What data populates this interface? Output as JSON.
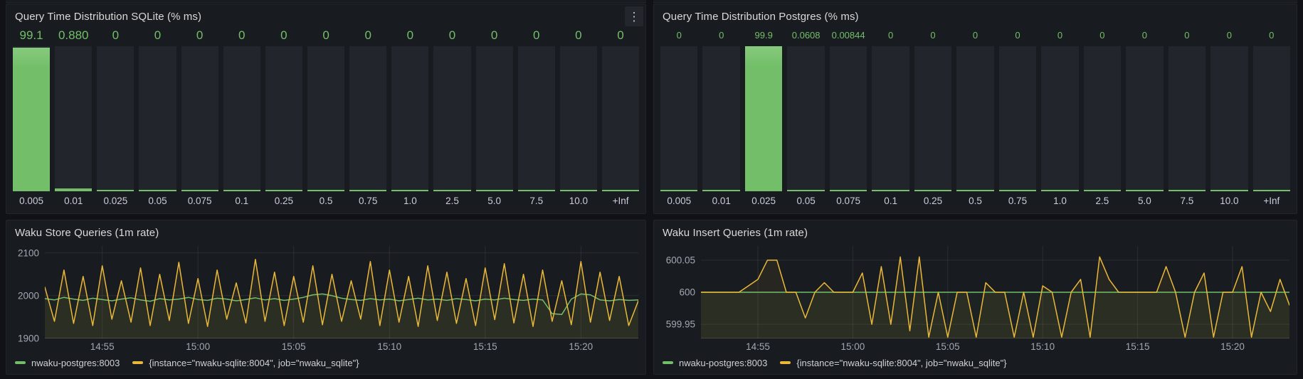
{
  "colors": {
    "page_bg": "#111217",
    "panel_bg": "#181b1f",
    "panel_border": "#22252b",
    "title_text": "#d8d9da",
    "green": "#73bf69",
    "yellow": "#eab839",
    "bar_track": "#22262c",
    "value_text": "#73bf69",
    "bucket_text": "#ccccdc",
    "tick_text": "rgba(204,204,220,0.78)",
    "grid": "rgba(204,204,220,0.10)",
    "axis_line": "rgba(204,204,220,0.16)"
  },
  "icons": {
    "kebab_menu": "⋮"
  },
  "chart_data": [
    {
      "type": "bar",
      "title": "Query Time Distribution SQLite (% ms)",
      "categories": [
        "0.005",
        "0.01",
        "0.025",
        "0.05",
        "0.075",
        "0.1",
        "0.25",
        "0.5",
        "0.75",
        "1.0",
        "2.5",
        "5.0",
        "7.5",
        "10.0",
        "+Inf"
      ],
      "values": [
        99.1,
        0.88,
        0,
        0,
        0,
        0,
        0,
        0,
        0,
        0,
        0,
        0,
        0,
        0,
        0
      ],
      "value_labels": [
        "99.1",
        "0.880",
        "0",
        "0",
        "0",
        "0",
        "0",
        "0",
        "0",
        "0",
        "0",
        "0",
        "0",
        "0",
        "0"
      ],
      "ylim": [
        0,
        100
      ],
      "bar_color": "#73bf69",
      "orientation": "vertical",
      "grid": false
    },
    {
      "type": "bar",
      "title": "Query Time Distribution Postgres (% ms)",
      "categories": [
        "0.005",
        "0.01",
        "0.025",
        "0.05",
        "0.075",
        "0.1",
        "0.25",
        "0.5",
        "0.75",
        "1.0",
        "2.5",
        "5.0",
        "7.5",
        "10.0",
        "+Inf"
      ],
      "values": [
        0,
        0,
        99.9,
        0.0608,
        0.00844,
        0,
        0,
        0,
        0,
        0,
        0,
        0,
        0,
        0,
        0
      ],
      "value_labels": [
        "0",
        "0",
        "99.9",
        "0.0608",
        "0.00844",
        "0",
        "0",
        "0",
        "0",
        "0",
        "0",
        "0",
        "0",
        "0",
        "0"
      ],
      "ylim": [
        0,
        100
      ],
      "bar_color": "#73bf69",
      "orientation": "vertical",
      "grid": false
    },
    {
      "type": "line",
      "title": "Waku Store Queries (1m rate)",
      "x_range": [
        0,
        31
      ],
      "x_start": "14:52",
      "x_end": "15:23",
      "xticks": [
        {
          "pos": 3,
          "label": "14:55"
        },
        {
          "pos": 8,
          "label": "15:00"
        },
        {
          "pos": 13,
          "label": "15:05"
        },
        {
          "pos": 18,
          "label": "15:10"
        },
        {
          "pos": 23,
          "label": "15:15"
        },
        {
          "pos": 28,
          "label": "15:20"
        }
      ],
      "yticks": [
        2100,
        2000,
        1900
      ],
      "ytick_labels": [
        "2100",
        "2000",
        "1900"
      ],
      "ylim": [
        1900,
        2116
      ],
      "grid": true,
      "legend_position": "bottom",
      "series": [
        {
          "name": "nwaku-postgres:8003",
          "color": "#73bf69",
          "fill_opacity": 0.05,
          "values": [
            1993,
            1990,
            1996,
            1992,
            1989,
            1994,
            1991,
            1988,
            1992,
            1995,
            1990,
            1987,
            1993,
            1990,
            1992,
            1996,
            1991,
            1989,
            1994,
            1992,
            1988,
            1991,
            1995,
            1990,
            1993,
            1989,
            1992,
            1996,
            2002,
            2004,
            2000,
            1994,
            1991,
            1989,
            1993,
            1990,
            1992,
            1988,
            1991,
            1994,
            1990,
            1992,
            1989,
            1993,
            1991,
            1988,
            1992,
            1990,
            1994,
            1991,
            1989,
            1992,
            1990,
            1958,
            1956,
            1992,
            2004,
            2002,
            1990,
            1988,
            1991,
            1989,
            1990
          ]
        },
        {
          "name": "{instance=\"nwaku-sqlite:8004\", job=\"nwaku_sqlite\"}",
          "color": "#eab839",
          "fill_opacity": 0.08,
          "values": [
            2020,
            1940,
            2060,
            1935,
            2045,
            1930,
            2070,
            1945,
            2035,
            1938,
            2065,
            1930,
            2050,
            1942,
            2078,
            1935,
            2040,
            1928,
            2060,
            1945,
            2030,
            1936,
            2085,
            1940,
            2055,
            1930,
            2045,
            1938,
            2070,
            1932,
            2050,
            1940,
            2035,
            1945,
            2080,
            1930,
            2060,
            1938,
            2045,
            1928,
            2070,
            1942,
            2055,
            1935,
            2040,
            1930,
            2065,
            1944,
            2075,
            1936,
            2050,
            1928,
            2060,
            1940,
            2035,
            1932,
            2080,
            1938,
            2055,
            1942,
            2045,
            1930,
            1988
          ]
        }
      ]
    },
    {
      "type": "line",
      "title": "Waku Insert Queries (1m rate)",
      "x_range": [
        0,
        31
      ],
      "x_start": "14:52",
      "x_end": "15:23",
      "xticks": [
        {
          "pos": 3,
          "label": "14:55"
        },
        {
          "pos": 8,
          "label": "15:00"
        },
        {
          "pos": 13,
          "label": "15:05"
        },
        {
          "pos": 18,
          "label": "15:10"
        },
        {
          "pos": 23,
          "label": "15:15"
        },
        {
          "pos": 28,
          "label": "15:20"
        }
      ],
      "yticks": [
        600.05,
        600,
        599.95
      ],
      "ytick_labels": [
        "600.05",
        "600",
        "599.95"
      ],
      "ylim": [
        599.928,
        600.072
      ],
      "grid": true,
      "legend_position": "bottom",
      "series": [
        {
          "name": "nwaku-postgres:8003",
          "color": "#73bf69",
          "fill_opacity": 0.05,
          "repeat": {
            "value": 600,
            "count": 63
          }
        },
        {
          "name": "{instance=\"nwaku-sqlite:8004\", job=\"nwaku_sqlite\"}",
          "color": "#eab839",
          "fill_opacity": 0.08,
          "values": [
            600,
            600,
            600,
            600,
            600,
            600.01,
            600.02,
            600.05,
            600.05,
            600,
            600,
            599.96,
            600,
            600.015,
            600,
            600,
            600,
            600.03,
            599.95,
            600.04,
            599.95,
            600.055,
            599.94,
            600.055,
            599.93,
            600,
            599.93,
            600,
            600,
            599.93,
            600.015,
            600,
            600,
            599.93,
            600,
            599.93,
            600.01,
            600,
            599.93,
            600,
            600.02,
            599.93,
            600.055,
            600.02,
            600,
            600,
            600,
            600,
            600,
            600.04,
            600,
            599.93,
            600,
            600.03,
            599.93,
            600,
            600,
            600.04,
            599.93,
            600,
            599.97,
            600.02,
            599.98
          ]
        }
      ]
    }
  ]
}
